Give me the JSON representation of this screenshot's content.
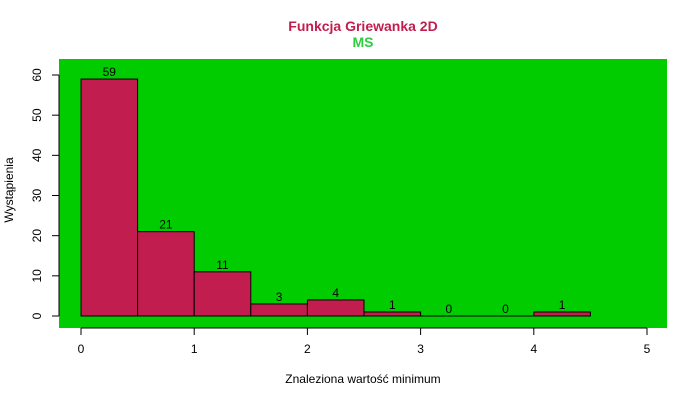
{
  "chart_data": {
    "type": "bar",
    "title": "Funkcja Griewanka 2D",
    "subtitle": "MS",
    "xlabel": "Znaleziona wartość minimum",
    "ylabel": "Wystąpienia",
    "bins": [
      {
        "from": 0.0,
        "to": 0.5,
        "value": 59
      },
      {
        "from": 0.5,
        "to": 1.0,
        "value": 21
      },
      {
        "from": 1.0,
        "to": 1.5,
        "value": 11
      },
      {
        "from": 1.5,
        "to": 2.0,
        "value": 3
      },
      {
        "from": 2.0,
        "to": 2.5,
        "value": 4
      },
      {
        "from": 2.5,
        "to": 3.0,
        "value": 1
      },
      {
        "from": 3.0,
        "to": 3.5,
        "value": 0
      },
      {
        "from": 3.5,
        "to": 4.0,
        "value": 0
      },
      {
        "from": 4.0,
        "to": 4.5,
        "value": 1
      }
    ],
    "xlim": [
      0,
      5
    ],
    "ylim": [
      0,
      60
    ],
    "xticks": [
      0,
      1,
      2,
      3,
      4,
      5
    ],
    "yticks": [
      0,
      10,
      20,
      30,
      40,
      50,
      60
    ],
    "grid": false,
    "colors": {
      "title": "#c21d4f",
      "subtitle": "#2ecc40",
      "bar_fill": "#c21d4f",
      "plot_background": "#00cc00"
    }
  }
}
